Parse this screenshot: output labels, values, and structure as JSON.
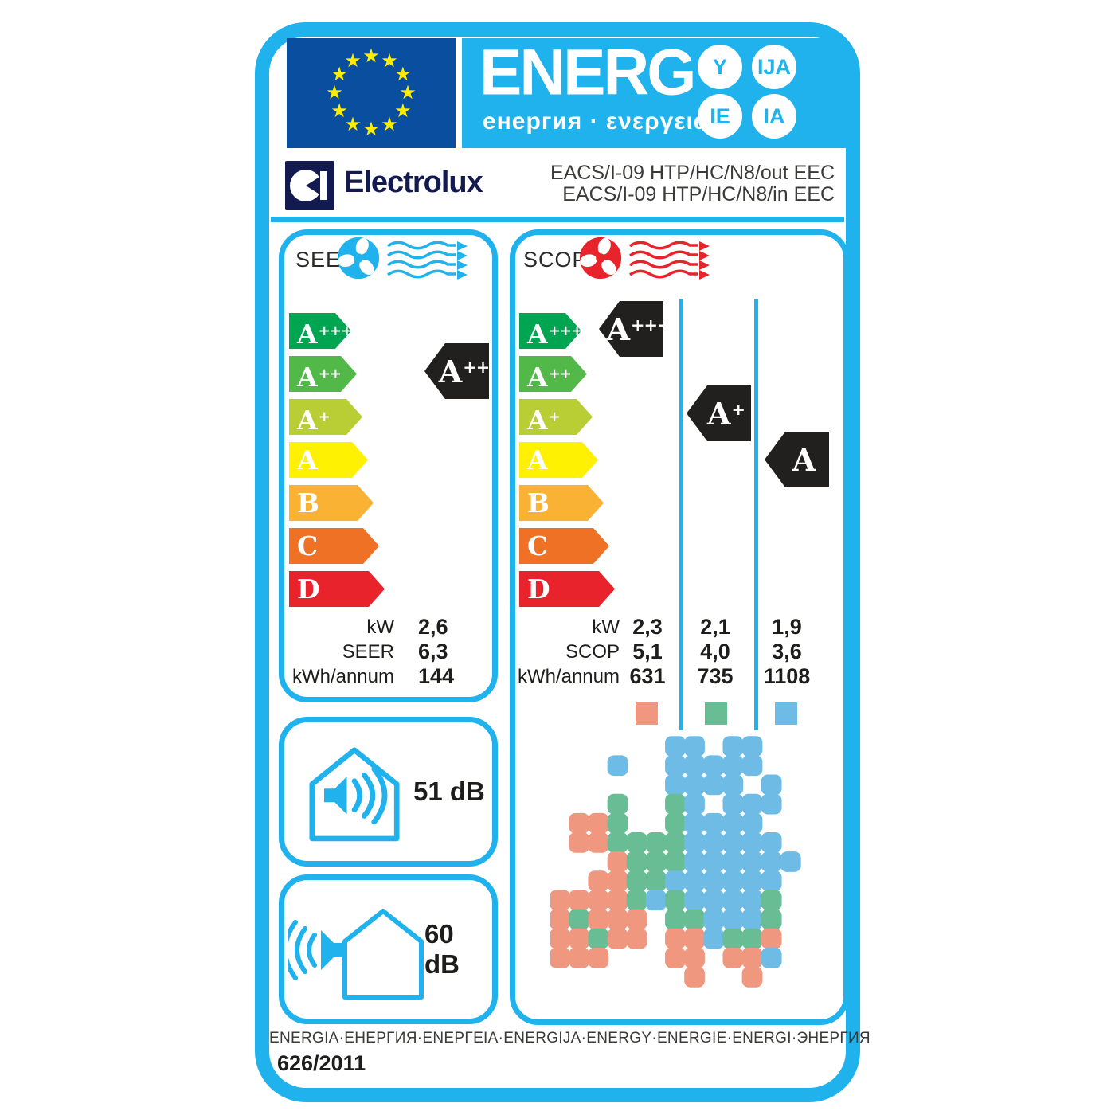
{
  "colors": {
    "cyan": "#1FB2ED",
    "eu_blue": "#0A4EA0",
    "star_yellow": "#FFED00",
    "navy": "#121A4F",
    "tag_black": "#221F1F",
    "zone_warm": "#F0977F",
    "zone_avg": "#68BD94",
    "zone_cold": "#6EBCE6"
  },
  "header": {
    "energ_title": "ENERG",
    "energ_sub": "енергия · ενεργεια",
    "badges": [
      "Y",
      "IJA",
      "IE",
      "IA"
    ],
    "brand": "Electrolux",
    "model_line1": "EACS/I-09 HTP/HC/N8/out EEC",
    "model_line2": "EACS/I-09 HTP/HC/N8/in EEC"
  },
  "ladder": [
    {
      "g": "A",
      "p": "+++"
    },
    {
      "g": "A",
      "p": "++"
    },
    {
      "g": "A",
      "p": "+"
    },
    {
      "g": "A",
      "p": ""
    },
    {
      "g": "B",
      "p": ""
    },
    {
      "g": "C",
      "p": ""
    },
    {
      "g": "D",
      "p": ""
    }
  ],
  "ladder_colors": [
    "#00A551",
    "#52B848",
    "#B8CE34",
    "#FFF101",
    "#F9B233",
    "#EE7125",
    "#E9232C"
  ],
  "seer": {
    "title": "SEER",
    "rating": {
      "g": "A",
      "p": "++"
    },
    "rows": [
      {
        "label": "kW",
        "value": "2,6"
      },
      {
        "label": "SEER",
        "value": "6,3"
      },
      {
        "label": "kWh/annum",
        "value": "144"
      }
    ]
  },
  "scop": {
    "title": "SCOP",
    "ratings": [
      {
        "g": "A",
        "p": "+++"
      },
      {
        "g": "A",
        "p": "+"
      },
      {
        "g": "A",
        "p": ""
      }
    ],
    "rows": [
      {
        "label": "kW",
        "values": [
          "2,3",
          "2,1",
          "1,9"
        ]
      },
      {
        "label": "SCOP",
        "values": [
          "5,1",
          "4,0",
          "3,6"
        ]
      },
      {
        "label": "kWh/annum",
        "values": [
          "631",
          "735",
          "1108"
        ]
      }
    ],
    "zone_order": [
      "warm",
      "average",
      "cold"
    ]
  },
  "noise": {
    "indoor": "51 dB",
    "outdoor": "60 dB"
  },
  "footer": {
    "languages": "ENERGIA·ЕНЕРГИЯ·ΕΝΕΡΓΕΙΑ·ENERGIJA·ENERGY·ENERGIE·ENERGI·ЭНЕРГИЯ",
    "regulation": "626/2011"
  },
  "icons": {
    "eu_flag": "eu-flag",
    "brand_symbol": "electrolux-logo-icon",
    "seer_fan": "fan-icon",
    "scop_fan": "fan-icon",
    "airflow": "airflow-arrows-icon",
    "indoor_noise": "indoor-noise-house-speaker-icon",
    "outdoor_noise": "outdoor-noise-house-speaker-icon",
    "map": "europe-climate-zones-map"
  },
  "map": {
    "grid": [
      "......BB.BB...",
      "...B..BBBBB...",
      "......BBBB.B..",
      "...G..GB.BBB..",
      ".SSG..GBBBB...",
      ".SSGGGGBBBBB..",
      "...SGGGBBBBBB.",
      "..SSGGBBBBBB..",
      "SSSSGBGBBBBG..",
      "SGSSS.GGBBBG..",
      "SSGSS.SSBGGS..",
      "SSS...SS.SSB..",
      ".......S..S..."
    ]
  }
}
